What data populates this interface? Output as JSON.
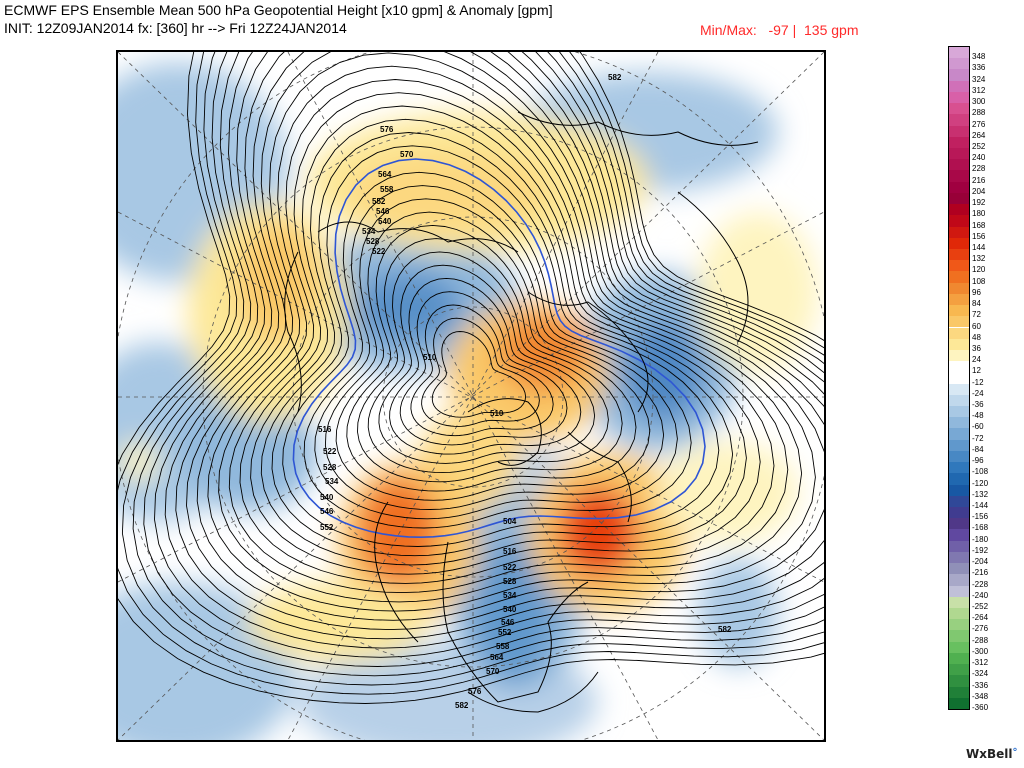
{
  "header": {
    "title_line1": "ECMWF EPS Ensemble Mean 500 hPa Geopotential Height [x10 gpm] & Anomaly [gpm]",
    "title_line2": "INIT: 12Z09JAN2014 fx: [360] hr --> Fri 12Z24JAN2014",
    "minmax": "Min/Max:   -97 |  135 gpm"
  },
  "colors": {
    "anomaly_positive": "#f5a340",
    "anomaly_strong_positive": "#e0442a",
    "anomaly_negative": "#8fb7dc",
    "anomaly_strong_negative": "#2f6db5",
    "contour": "#000000",
    "contour_540": "#2e55d4",
    "coastline": "#000000"
  },
  "colorbar": {
    "labels": [
      "348",
      "336",
      "324",
      "312",
      "300",
      "288",
      "276",
      "264",
      "252",
      "240",
      "228",
      "216",
      "204",
      "192",
      "180",
      "168",
      "156",
      "144",
      "132",
      "120",
      "108",
      "96",
      "84",
      "72",
      "60",
      "48",
      "36",
      "24",
      "12",
      "-12",
      "-24",
      "-36",
      "-48",
      "-60",
      "-72",
      "-84",
      "-96",
      "-108",
      "-120",
      "-132",
      "-144",
      "-156",
      "-168",
      "-180",
      "-192",
      "-204",
      "-216",
      "-228",
      "-240",
      "-252",
      "-264",
      "-276",
      "-288",
      "-300",
      "-312",
      "-324",
      "-336",
      "-348",
      "-360"
    ],
    "colors": [
      "#d8a8d8",
      "#d098d0",
      "#c888c8",
      "#d070b8",
      "#d860a8",
      "#d85090",
      "#d04080",
      "#c83070",
      "#c02060",
      "#b81858",
      "#b01050",
      "#a80848",
      "#a00040",
      "#980038",
      "#b00020",
      "#c00818",
      "#d01810",
      "#e02808",
      "#e84010",
      "#f05818",
      "#f07020",
      "#f08830",
      "#f4a040",
      "#f8b850",
      "#fac868",
      "#fcd880",
      "#fde898",
      "#fef4c0",
      "#ffffff",
      "#ffffff",
      "#d8e8f4",
      "#c0d8ec",
      "#a8c8e4",
      "#90b8dc",
      "#78a8d4",
      "#6098cc",
      "#4888c4",
      "#3078bc",
      "#2068b0",
      "#1858a4",
      "#304898",
      "#403c90",
      "#503888",
      "#6048a0",
      "#7060a8",
      "#8078b0",
      "#9090b8",
      "#a8a8c8",
      "#c0c0d8",
      "#c8e0a8",
      "#b0d890",
      "#98d080",
      "#80c870",
      "#68c060",
      "#50b050",
      "#40a048",
      "#309040",
      "#208038",
      "#107030"
    ]
  },
  "map": {
    "contour_labels": [
      "582",
      "576",
      "570",
      "564",
      "558",
      "552",
      "546",
      "540",
      "534",
      "528",
      "522",
      "510",
      "516",
      "510",
      "522",
      "528",
      "534",
      "540",
      "546",
      "552",
      "504",
      "516",
      "522",
      "528",
      "534",
      "540",
      "546",
      "552",
      "558",
      "564",
      "570",
      "576",
      "582",
      "582"
    ]
  },
  "branding": {
    "logo_text": "WxBell"
  }
}
